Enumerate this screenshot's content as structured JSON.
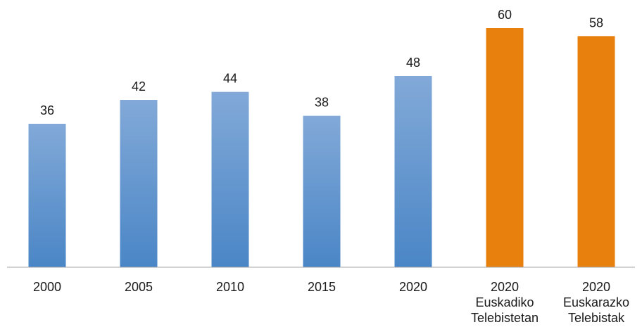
{
  "chart_data": {
    "type": "bar",
    "categories": [
      [
        "2000"
      ],
      [
        "2005"
      ],
      [
        "2010"
      ],
      [
        "2015"
      ],
      [
        "2020"
      ],
      [
        "2020",
        "Euskadiko",
        "Telebistetan"
      ],
      [
        "2020",
        "Euskarazko",
        "Telebistak"
      ]
    ],
    "values": [
      36,
      42,
      44,
      38,
      48,
      60,
      58
    ],
    "bar_colors": [
      "blue",
      "blue",
      "blue",
      "blue",
      "blue",
      "orange",
      "orange"
    ],
    "title": "",
    "xlabel": "",
    "ylabel": "",
    "ylim": [
      0,
      60
    ],
    "grid": false,
    "legend": "none",
    "data_labels": true
  },
  "colors": {
    "blue_top": "#82a9d8",
    "blue_bottom": "#4a86c6",
    "orange": "#e8800e",
    "axis": "#a6a6a6",
    "text": "#1a1a1a"
  }
}
